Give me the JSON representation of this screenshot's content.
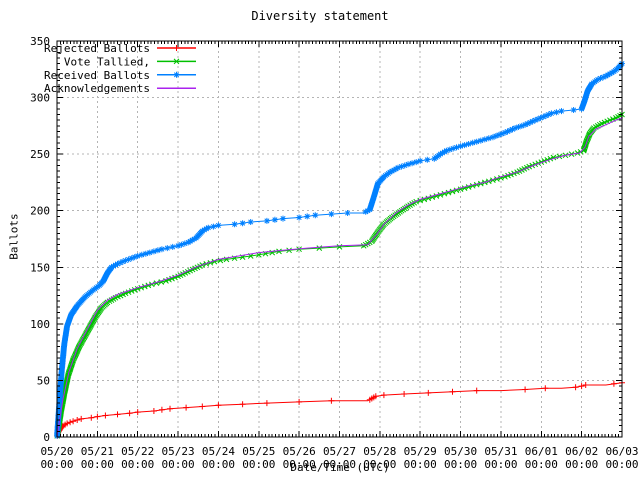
{
  "figure": {
    "title": "Diversity statement",
    "xlabel": "Date/Time (UTC)",
    "ylabel": "Ballots"
  },
  "chart_data": {
    "type": "line",
    "title": "Diversity statement",
    "xlabel": "Date/Time (UTC)",
    "ylabel": "Ballots",
    "x_unit": "days since 05/20 00:00",
    "x_tick_dates": [
      "05/20",
      "05/21",
      "05/22",
      "05/23",
      "05/24",
      "05/25",
      "05/26",
      "05/27",
      "05/28",
      "05/29",
      "05/30",
      "05/31",
      "06/01",
      "06/02",
      "06/03"
    ],
    "x_tick_time": "00:00",
    "ylim": [
      0,
      350
    ],
    "y_tick_step": 50,
    "grid": true,
    "grid_color": "#b4b4b4",
    "legend_position": "top-left",
    "series": [
      {
        "name": "Rejected Ballots",
        "color": "#ff0000",
        "marker": "plus",
        "points": [
          [
            0,
            0
          ],
          [
            0.03,
            4
          ],
          [
            0.08,
            7
          ],
          [
            0.15,
            10
          ],
          [
            0.25,
            12
          ],
          [
            0.4,
            14
          ],
          [
            0.6,
            16
          ],
          [
            0.85,
            17
          ],
          [
            1.0,
            18
          ],
          [
            1.2,
            19
          ],
          [
            1.5,
            20
          ],
          [
            1.8,
            21
          ],
          [
            2.0,
            22
          ],
          [
            2.4,
            23
          ],
          [
            2.8,
            25
          ],
          [
            3.2,
            26
          ],
          [
            3.6,
            27
          ],
          [
            4.0,
            28
          ],
          [
            4.6,
            29
          ],
          [
            5.2,
            30
          ],
          [
            6.0,
            31
          ],
          [
            6.8,
            32
          ],
          [
            7.7,
            32
          ],
          [
            7.8,
            34
          ],
          [
            7.9,
            36
          ],
          [
            8.1,
            37
          ],
          [
            8.6,
            38
          ],
          [
            9.2,
            39
          ],
          [
            9.8,
            40
          ],
          [
            10.4,
            41
          ],
          [
            11.0,
            41
          ],
          [
            11.6,
            42
          ],
          [
            12.1,
            43
          ],
          [
            12.5,
            43
          ],
          [
            12.85,
            44
          ],
          [
            13.0,
            45
          ],
          [
            13.1,
            46
          ],
          [
            13.6,
            46
          ],
          [
            14.0,
            48
          ]
        ]
      },
      {
        "name": "Vote Tallied,",
        "color": "#00c000",
        "marker": "cross",
        "points": [
          [
            0,
            0
          ],
          [
            0.04,
            8
          ],
          [
            0.1,
            22
          ],
          [
            0.18,
            38
          ],
          [
            0.28,
            55
          ],
          [
            0.4,
            68
          ],
          [
            0.55,
            80
          ],
          [
            0.75,
            93
          ],
          [
            0.95,
            106
          ],
          [
            1.1,
            114
          ],
          [
            1.25,
            119
          ],
          [
            1.45,
            123
          ],
          [
            1.7,
            127
          ],
          [
            2.0,
            131
          ],
          [
            2.35,
            135
          ],
          [
            2.7,
            138
          ],
          [
            3.0,
            142
          ],
          [
            3.3,
            147
          ],
          [
            3.6,
            152
          ],
          [
            3.9,
            155
          ],
          [
            4.2,
            157
          ],
          [
            4.6,
            159
          ],
          [
            5.0,
            161
          ],
          [
            5.5,
            164
          ],
          [
            6.0,
            166
          ],
          [
            6.5,
            167
          ],
          [
            7.0,
            168
          ],
          [
            7.6,
            169
          ],
          [
            7.8,
            173
          ],
          [
            7.95,
            181
          ],
          [
            8.1,
            188
          ],
          [
            8.3,
            194
          ],
          [
            8.5,
            199
          ],
          [
            8.7,
            204
          ],
          [
            8.9,
            208
          ],
          [
            9.1,
            210
          ],
          [
            9.4,
            213
          ],
          [
            9.6,
            215
          ],
          [
            9.9,
            218
          ],
          [
            10.2,
            221
          ],
          [
            10.5,
            224
          ],
          [
            10.8,
            227
          ],
          [
            11.1,
            230
          ],
          [
            11.4,
            234
          ],
          [
            11.7,
            239
          ],
          [
            12.0,
            243
          ],
          [
            12.3,
            247
          ],
          [
            12.6,
            249
          ],
          [
            12.9,
            251
          ],
          [
            13.05,
            253
          ],
          [
            13.12,
            261
          ],
          [
            13.2,
            268
          ],
          [
            13.3,
            273
          ],
          [
            13.5,
            277
          ],
          [
            13.7,
            280
          ],
          [
            13.85,
            282
          ],
          [
            14.0,
            285
          ]
        ]
      },
      {
        "name": "Received Ballots",
        "color": "#0080ff",
        "marker": "asterisk",
        "points": [
          [
            0,
            0
          ],
          [
            0.03,
            15
          ],
          [
            0.07,
            35
          ],
          [
            0.12,
            60
          ],
          [
            0.18,
            82
          ],
          [
            0.25,
            98
          ],
          [
            0.35,
            108
          ],
          [
            0.5,
            116
          ],
          [
            0.7,
            124
          ],
          [
            0.9,
            130
          ],
          [
            1.05,
            134
          ],
          [
            1.15,
            138
          ],
          [
            1.25,
            145
          ],
          [
            1.35,
            150
          ],
          [
            1.5,
            153
          ],
          [
            1.7,
            156
          ],
          [
            2.0,
            160
          ],
          [
            2.3,
            163
          ],
          [
            2.6,
            166
          ],
          [
            3.0,
            169
          ],
          [
            3.25,
            172
          ],
          [
            3.45,
            176
          ],
          [
            3.6,
            182
          ],
          [
            3.75,
            185
          ],
          [
            4.0,
            187
          ],
          [
            4.4,
            188
          ],
          [
            4.8,
            190
          ],
          [
            5.2,
            191
          ],
          [
            5.6,
            193
          ],
          [
            6.0,
            194
          ],
          [
            6.4,
            196
          ],
          [
            6.8,
            197
          ],
          [
            7.2,
            198
          ],
          [
            7.6,
            198
          ],
          [
            7.75,
            201
          ],
          [
            7.85,
            212
          ],
          [
            7.95,
            224
          ],
          [
            8.1,
            230
          ],
          [
            8.25,
            234
          ],
          [
            8.45,
            238
          ],
          [
            8.7,
            241
          ],
          [
            9.0,
            244
          ],
          [
            9.35,
            246
          ],
          [
            9.5,
            250
          ],
          [
            9.65,
            253
          ],
          [
            9.9,
            256
          ],
          [
            10.2,
            259
          ],
          [
            10.5,
            262
          ],
          [
            10.8,
            265
          ],
          [
            11.1,
            269
          ],
          [
            11.35,
            273
          ],
          [
            11.6,
            276
          ],
          [
            11.85,
            280
          ],
          [
            12.05,
            283
          ],
          [
            12.25,
            286
          ],
          [
            12.5,
            288
          ],
          [
            12.8,
            289
          ],
          [
            13.0,
            290
          ],
          [
            13.08,
            298
          ],
          [
            13.15,
            306
          ],
          [
            13.25,
            312
          ],
          [
            13.4,
            316
          ],
          [
            13.6,
            319
          ],
          [
            13.8,
            323
          ],
          [
            13.9,
            326
          ],
          [
            14.0,
            330
          ]
        ]
      },
      {
        "name": "Acknowledgements",
        "color": "#aa22ee",
        "marker": "none",
        "points": [
          [
            0,
            0
          ],
          [
            0.06,
            14
          ],
          [
            0.15,
            34
          ],
          [
            0.3,
            58
          ],
          [
            0.5,
            78
          ],
          [
            0.75,
            95
          ],
          [
            1.0,
            112
          ],
          [
            1.25,
            121
          ],
          [
            1.5,
            126
          ],
          [
            2.0,
            132
          ],
          [
            2.5,
            137
          ],
          [
            3.0,
            143
          ],
          [
            3.5,
            151
          ],
          [
            4.0,
            157
          ],
          [
            4.5,
            160
          ],
          [
            5.0,
            163
          ],
          [
            5.6,
            165
          ],
          [
            6.2,
            167
          ],
          [
            7.0,
            169
          ],
          [
            7.7,
            170
          ],
          [
            7.9,
            178
          ],
          [
            8.1,
            188
          ],
          [
            8.4,
            198
          ],
          [
            8.7,
            205
          ],
          [
            9.0,
            210
          ],
          [
            9.4,
            214
          ],
          [
            9.8,
            218
          ],
          [
            10.2,
            222
          ],
          [
            10.6,
            225
          ],
          [
            11.0,
            230
          ],
          [
            11.4,
            234
          ],
          [
            11.8,
            240
          ],
          [
            12.2,
            245
          ],
          [
            12.6,
            249
          ],
          [
            12.95,
            251
          ],
          [
            13.08,
            256
          ],
          [
            13.18,
            266
          ],
          [
            13.35,
            272
          ],
          [
            13.6,
            276
          ],
          [
            13.85,
            280
          ],
          [
            14.0,
            282
          ]
        ]
      }
    ]
  }
}
